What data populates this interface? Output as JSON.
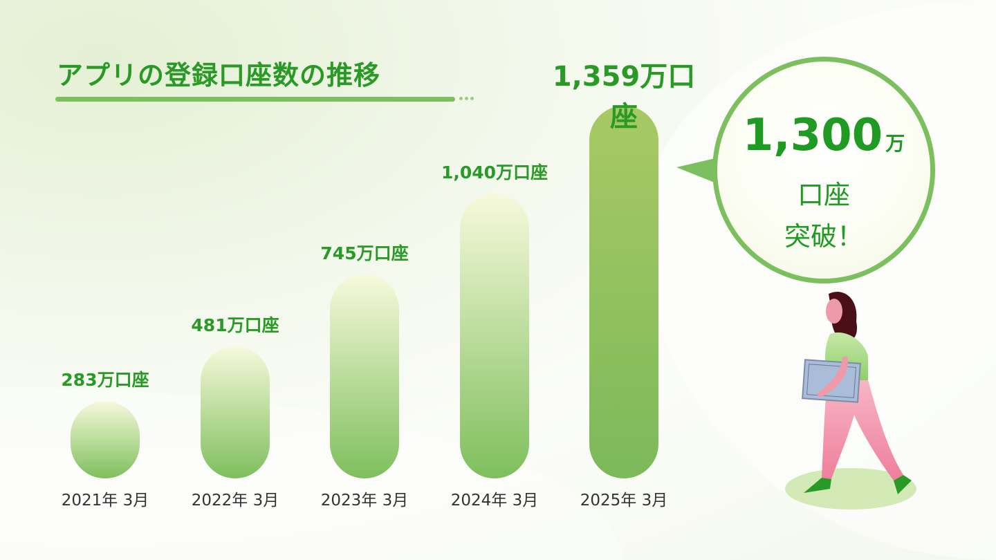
{
  "colors": {
    "accent": "#2a9a26",
    "bar_top": "#f7f9dc",
    "bar_bottom": "#7ebf5c",
    "bubble_border": "#7cbf5e"
  },
  "chart_data": {
    "type": "bar",
    "title": "アプリの登録口座数の推移",
    "categories": [
      "2021年 3月",
      "2022年 3月",
      "2023年 3月",
      "2024年 3月",
      "2025年 3月"
    ],
    "values": [
      283,
      481,
      745,
      1040,
      1359
    ],
    "data_labels": [
      "283万口座",
      "481万口座",
      "745万口座",
      "1,040万口座",
      "1,359万口座"
    ],
    "unit": "万口座",
    "ylim": [
      0,
      1359
    ],
    "grid": false,
    "xlabel": "",
    "ylabel": ""
  },
  "callout": {
    "number": "1,300",
    "unit": "万",
    "line2": "口座",
    "line3": "突破！"
  },
  "illustration": "woman-walking-with-tablet"
}
